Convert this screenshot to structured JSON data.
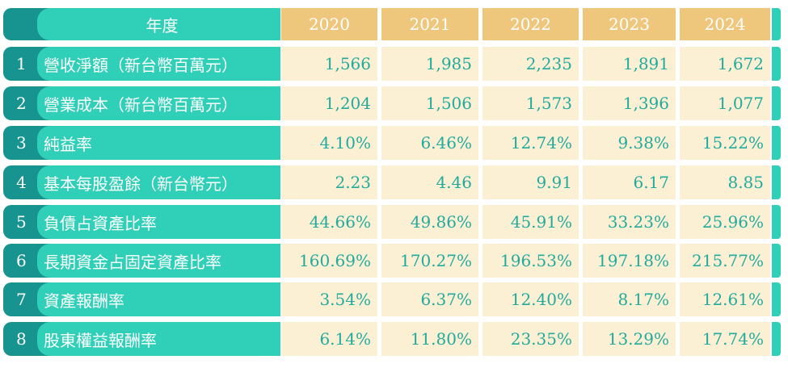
{
  "header": {
    "label": "年度",
    "years": [
      "2020",
      "2021",
      "2022",
      "2023",
      "2024"
    ]
  },
  "rows": [
    {
      "number": "1",
      "label": "營收淨額（新台幣百萬元）",
      "values": [
        "1,566",
        "1,985",
        "2,235",
        "1,891",
        "1,672"
      ]
    },
    {
      "number": "2",
      "label": "營業成本（新台幣百萬元）",
      "values": [
        "1,204",
        "1,506",
        "1,573",
        "1,396",
        "1,077"
      ]
    },
    {
      "number": "3",
      "label": "純益率",
      "values": [
        "4.10%",
        "6.46%",
        "12.74%",
        "9.38%",
        "15.22%"
      ]
    },
    {
      "number": "4",
      "label": "基本每股盈餘（新台幣元）",
      "values": [
        "2.23",
        "4.46",
        "9.91",
        "6.17",
        "8.85"
      ]
    },
    {
      "number": "5",
      "label": "負債占資產比率",
      "values": [
        "44.66%",
        "49.86%",
        "45.91%",
        "33.23%",
        "25.96%"
      ]
    },
    {
      "number": "6",
      "label": "長期資金占固定資產比率",
      "values": [
        "160.69%",
        "170.27%",
        "196.53%",
        "197.18%",
        "215.77%"
      ]
    },
    {
      "number": "7",
      "label": "資產報酬率",
      "values": [
        "3.54%",
        "6.37%",
        "12.40%",
        "8.17%",
        "12.61%"
      ]
    },
    {
      "number": "8",
      "label": "股東權益報酬率",
      "values": [
        "6.14%",
        "11.80%",
        "23.35%",
        "13.29%",
        "17.74%"
      ]
    }
  ]
}
